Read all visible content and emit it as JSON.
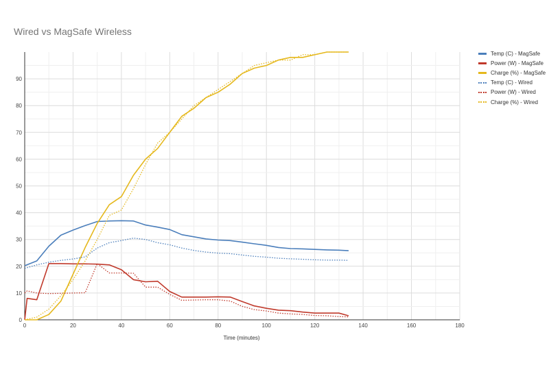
{
  "chart_data": {
    "type": "line",
    "title": "Wired vs MagSafe Wireless",
    "xlabel": "Time (minutes)",
    "ylabel": "",
    "xlim": [
      0,
      180
    ],
    "ylim": [
      0,
      100
    ],
    "xticks": [
      0,
      20,
      40,
      60,
      80,
      100,
      120,
      140,
      160,
      180
    ],
    "yticks": [
      0,
      10,
      20,
      30,
      40,
      50,
      60,
      70,
      80,
      90
    ],
    "grid": true,
    "legend_position": "right",
    "series": [
      {
        "name": "Temp (C) - MagSafe",
        "color": "#4a7ebb",
        "style": "solid",
        "x": [
          0,
          5,
          10,
          15,
          20,
          25,
          30,
          35,
          40,
          45,
          50,
          55,
          60,
          65,
          70,
          75,
          80,
          85,
          90,
          95,
          100,
          105,
          110,
          115,
          120,
          125,
          130,
          134
        ],
        "y": [
          20.2,
          22,
          27.5,
          31.6,
          33.5,
          35.2,
          36.7,
          36.9,
          37,
          36.9,
          35.4,
          34.6,
          33.7,
          31.8,
          31,
          30.2,
          29.8,
          29.6,
          29.0,
          28.4,
          27.8,
          27,
          26.6,
          26.5,
          26.3,
          26.1,
          26,
          25.8
        ]
      },
      {
        "name": "Power (W) - MagSafe",
        "color": "#c0392b",
        "style": "solid",
        "x": [
          0,
          1,
          5,
          10,
          15,
          20,
          25,
          30,
          35,
          40,
          45,
          50,
          55,
          60,
          65,
          70,
          75,
          80,
          85,
          90,
          95,
          100,
          105,
          110,
          115,
          120,
          125,
          130,
          134
        ],
        "y": [
          0,
          8,
          7.5,
          21,
          21,
          20.9,
          20.9,
          20.8,
          20.5,
          18.7,
          15,
          14.2,
          14.4,
          10.6,
          8.5,
          8.5,
          8.5,
          8.6,
          8.5,
          6.8,
          5.2,
          4.3,
          3.6,
          3.4,
          2.9,
          2.5,
          2.5,
          2.5,
          1.5
        ]
      },
      {
        "name": "Charge (%) - MagSafe",
        "color": "#e5b81c",
        "style": "solid",
        "x": [
          0,
          5,
          10,
          15,
          20,
          25,
          30,
          35,
          40,
          45,
          50,
          55,
          60,
          65,
          70,
          75,
          80,
          85,
          90,
          95,
          100,
          105,
          110,
          115,
          120,
          125,
          130,
          134
        ],
        "y": [
          0,
          0,
          2,
          7,
          17,
          27,
          36,
          43,
          46,
          54,
          60,
          64,
          70,
          76,
          79,
          83,
          85,
          88,
          92,
          94,
          95,
          97,
          98,
          98,
          99,
          100,
          100,
          100
        ]
      },
      {
        "name": "Temp (C) - Wired",
        "color": "#4a7ebb",
        "style": "dotted",
        "x": [
          0,
          5,
          10,
          15,
          20,
          25,
          30,
          35,
          40,
          45,
          50,
          55,
          60,
          65,
          70,
          75,
          80,
          85,
          90,
          95,
          100,
          105,
          110,
          115,
          120,
          125,
          130,
          134
        ],
        "y": [
          19.2,
          20.5,
          21.5,
          22.2,
          22.7,
          23.5,
          26.8,
          28.8,
          29.6,
          30.5,
          30.0,
          28.8,
          28.0,
          26.8,
          25.9,
          25.3,
          24.9,
          24.7,
          24.2,
          23.7,
          23.4,
          23.0,
          22.8,
          22.6,
          22.4,
          22.3,
          22.3,
          22.2
        ]
      },
      {
        "name": "Power (W) - Wired",
        "color": "#c0392b",
        "style": "dotted",
        "x": [
          0,
          1,
          5,
          10,
          15,
          20,
          25,
          30,
          35,
          40,
          45,
          50,
          55,
          60,
          65,
          70,
          75,
          80,
          85,
          90,
          95,
          100,
          105,
          110,
          115,
          120,
          125,
          130,
          134
        ],
        "y": [
          10,
          10.8,
          10,
          9.8,
          9.9,
          10,
          10.1,
          21,
          17.5,
          17.5,
          17.4,
          12.2,
          12.2,
          9.5,
          7.3,
          7.4,
          7.5,
          7.5,
          7.0,
          5.0,
          3.8,
          3.3,
          2.5,
          2.2,
          2.0,
          1.6,
          1.5,
          1.2,
          1.1
        ]
      },
      {
        "name": "Charge (%) - Wired",
        "color": "#e5b81c",
        "style": "dotted",
        "x": [
          0,
          5,
          10,
          15,
          20,
          25,
          30,
          35,
          40,
          45,
          50,
          55,
          60,
          65,
          70,
          75,
          80,
          85,
          90,
          95,
          100,
          105,
          110,
          115,
          120,
          125,
          130,
          134
        ],
        "y": [
          0,
          1,
          4,
          9,
          15,
          22,
          30,
          39,
          41,
          49,
          58,
          66,
          70,
          75,
          80,
          83,
          86,
          89,
          92,
          95,
          96,
          97,
          97,
          99,
          99,
          100,
          100,
          100
        ]
      }
    ]
  }
}
